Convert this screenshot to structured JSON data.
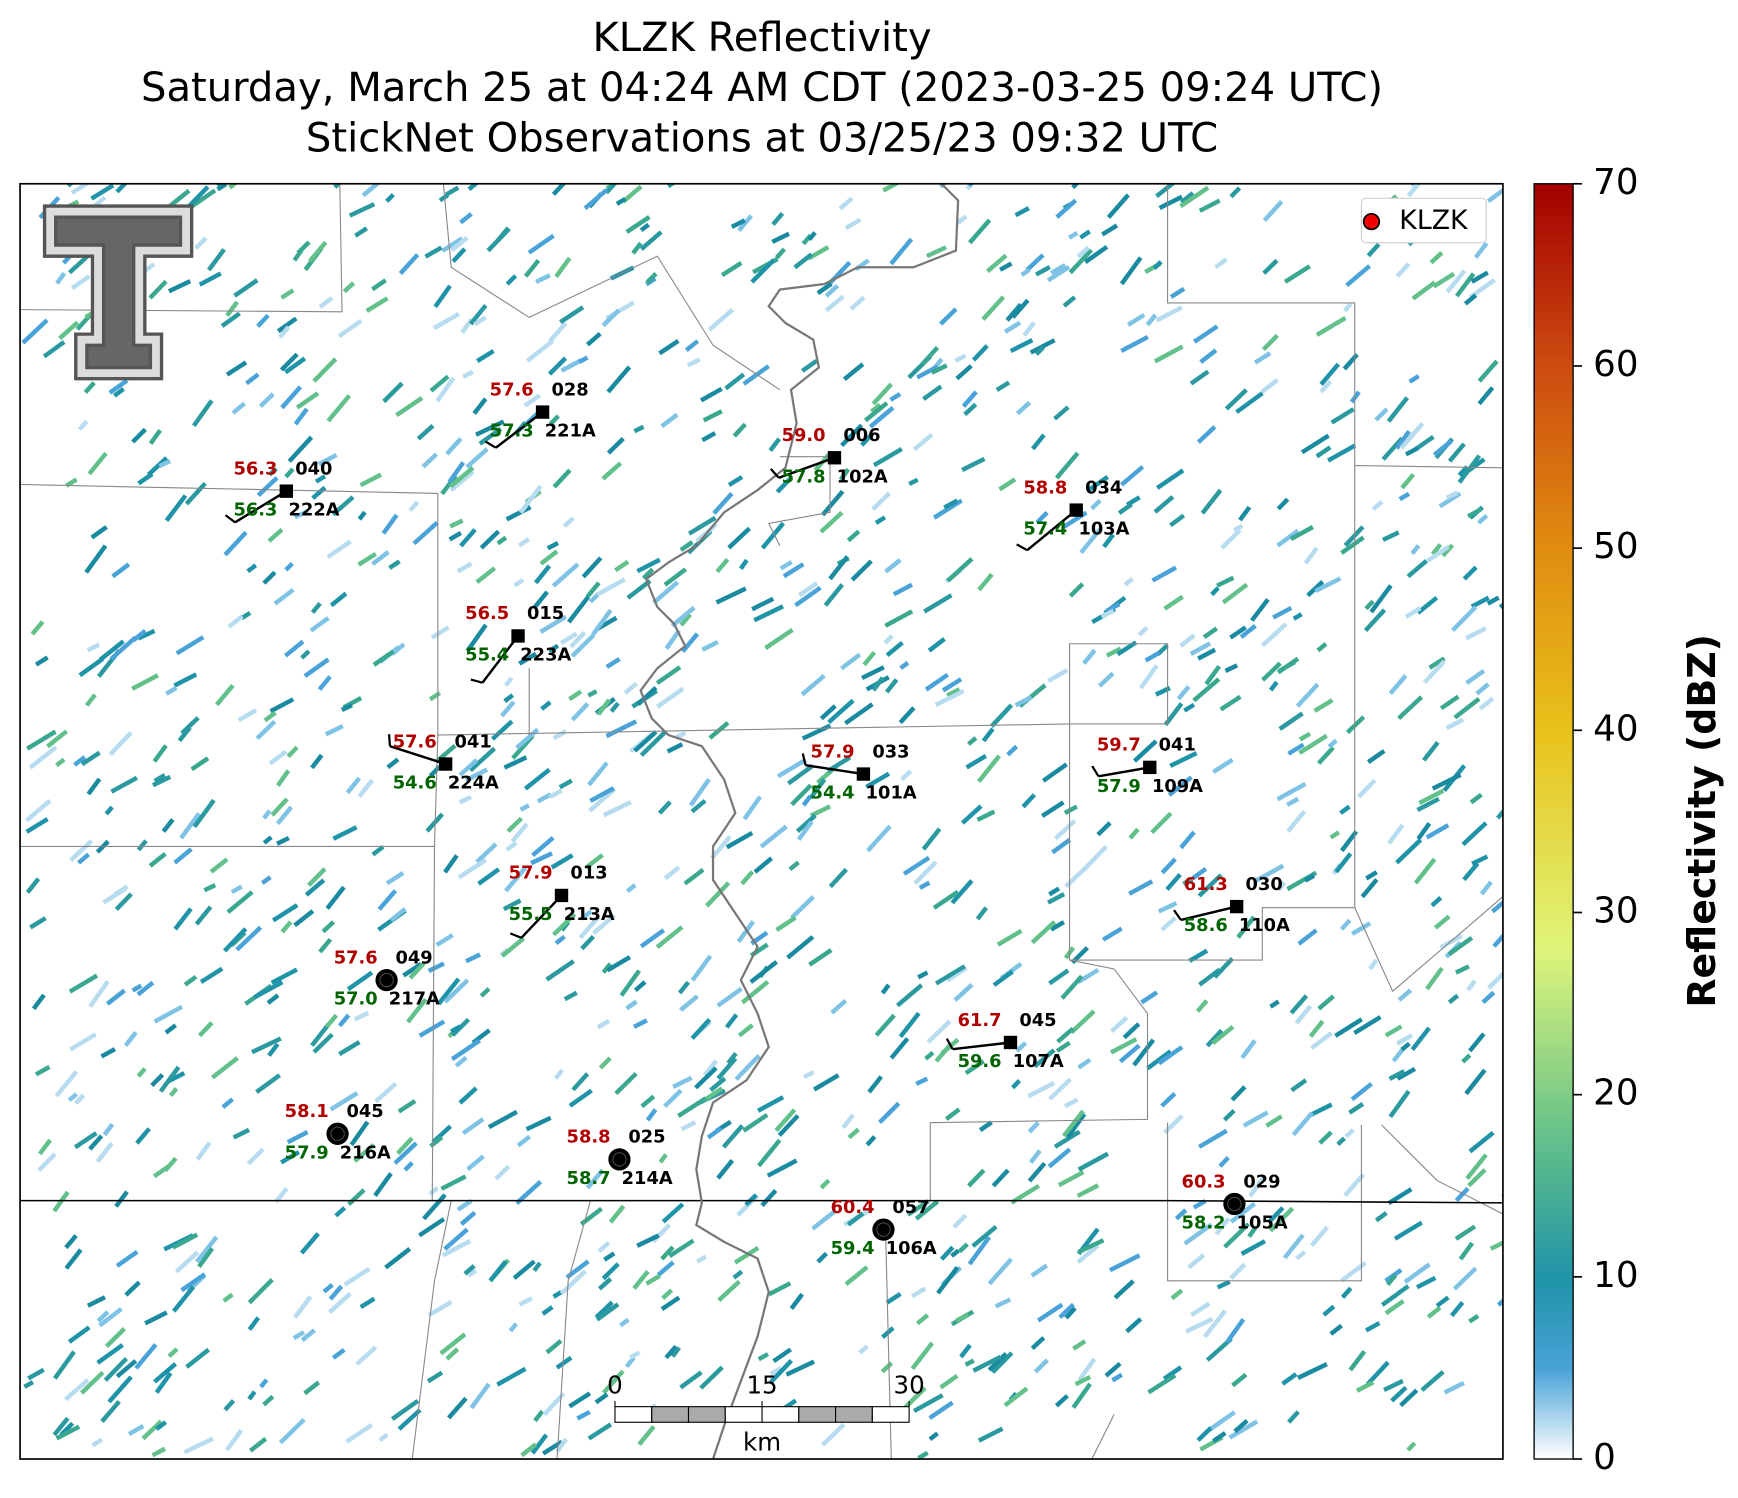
{
  "title": [
    "KLZK Reflectivity",
    "Saturday, March 25 at 04:24 AM CDT (2023-03-25 09:24 UTC)",
    "StickNet Observations at 03/25/23 09:32 UTC"
  ],
  "legend": "KLZK",
  "colorbar": {
    "label": "Reflectivity (dBZ)",
    "lim": [
      0,
      70
    ],
    "ticks": [
      0,
      10,
      20,
      30,
      40,
      50,
      60,
      70
    ]
  },
  "scale_bar": {
    "ticks": [
      0,
      15,
      30
    ],
    "unit": "km"
  },
  "stations": [
    {
      "temperature": "57.6",
      "dewpoint": "57.3",
      "id": "221A",
      "code": "028"
    },
    {
      "temperature": "56.3",
      "dewpoint": "56.3",
      "id": "222A",
      "code": "040"
    },
    {
      "temperature": "59.0",
      "dewpoint": "57.8",
      "id": "102A",
      "code": "006"
    },
    {
      "temperature": "58.8",
      "dewpoint": "57.4",
      "id": "103A",
      "code": "034"
    },
    {
      "temperature": "56.5",
      "dewpoint": "55.4",
      "id": "223A",
      "code": "015"
    },
    {
      "temperature": "57.6",
      "dewpoint": "54.6",
      "id": "224A",
      "code": "041"
    },
    {
      "temperature": "57.9",
      "dewpoint": "54.4",
      "id": "101A",
      "code": "033"
    },
    {
      "temperature": "59.7",
      "dewpoint": "57.9",
      "id": "109A",
      "code": "041"
    },
    {
      "temperature": "57.9",
      "dewpoint": "55.5",
      "id": "213A",
      "code": "013"
    },
    {
      "temperature": "61.3",
      "dewpoint": "58.6",
      "id": "110A",
      "code": "030"
    },
    {
      "temperature": "57.6",
      "dewpoint": "57.0",
      "id": "217A",
      "code": "049"
    },
    {
      "temperature": "61.7",
      "dewpoint": "59.6",
      "id": "107A",
      "code": "045"
    },
    {
      "temperature": "58.1",
      "dewpoint": "57.9",
      "id": "216A",
      "code": "045"
    },
    {
      "temperature": "58.8",
      "dewpoint": "58.7",
      "id": "214A",
      "code": "025"
    },
    {
      "temperature": "60.3",
      "dewpoint": "58.2",
      "id": "105A",
      "code": "029"
    },
    {
      "temperature": "60.4",
      "dewpoint": "59.4",
      "id": "106A",
      "code": "057"
    }
  ]
}
